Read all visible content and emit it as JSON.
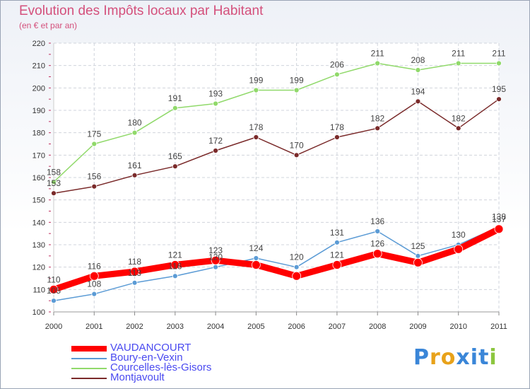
{
  "header": {
    "title": "Evolution des Impôts locaux par Habitant",
    "subtitle": "(en € et par an)"
  },
  "logo": {
    "text": "Proxiti",
    "letter_colors": [
      "#3a86d8",
      "#e8a21a",
      "#e8a21a",
      "#3a86d8",
      "#3a86d8",
      "#3a86d8",
      "#8cc63f"
    ]
  },
  "chart_data": {
    "type": "line",
    "title": "Evolution des Impôts locaux par Habitant",
    "subtitle": "(en € et par an)",
    "xlabel": "",
    "ylabel": "",
    "ylim": [
      100,
      220
    ],
    "yticks": [
      "100",
      "110",
      "120",
      "130",
      "140",
      "150",
      "160",
      "170",
      "180",
      "190",
      "200",
      "210",
      "220"
    ],
    "categories": [
      "2000",
      "2001",
      "2002",
      "2003",
      "2004",
      "2005",
      "2006",
      "2007",
      "2008",
      "2009",
      "2010",
      "2011"
    ],
    "grid": true,
    "legend_position": "bottom-left",
    "series": [
      {
        "name": "VAUDANCOURT",
        "color": "#ff0000",
        "values": [
          110,
          116,
          118,
          121,
          123,
          121,
          116,
          121,
          126,
          122,
          128,
          137
        ],
        "labels": [
          "110",
          "116",
          "118",
          "121",
          "123",
          "",
          "",
          "121",
          "126",
          "",
          "",
          "137"
        ]
      },
      {
        "name": "Boury-en-Vexin",
        "color": "#5b9bd5",
        "values": [
          105,
          108,
          113,
          116,
          120,
          124,
          120,
          131,
          136,
          125,
          130,
          138
        ],
        "labels": [
          "105",
          "108",
          "113",
          "116",
          "120",
          "124",
          "120",
          "131",
          "136",
          "125",
          "130",
          "138"
        ]
      },
      {
        "name": "Courcelles-lès-Gisors",
        "color": "#90d96a",
        "values": [
          158,
          175,
          180,
          191,
          193,
          199,
          199,
          206,
          211,
          208,
          211,
          211
        ],
        "labels": [
          "158",
          "175",
          "180",
          "191",
          "193",
          "199",
          "199",
          "206",
          "211",
          "208",
          "211",
          "211"
        ]
      },
      {
        "name": "Montjavoult",
        "color": "#7a2a2a",
        "values": [
          153,
          156,
          161,
          165,
          172,
          178,
          170,
          178,
          182,
          194,
          182,
          195
        ],
        "labels": [
          "153",
          "156",
          "161",
          "165",
          "172",
          "178",
          "170",
          "178",
          "182",
          "194",
          "182",
          "195"
        ]
      }
    ]
  }
}
